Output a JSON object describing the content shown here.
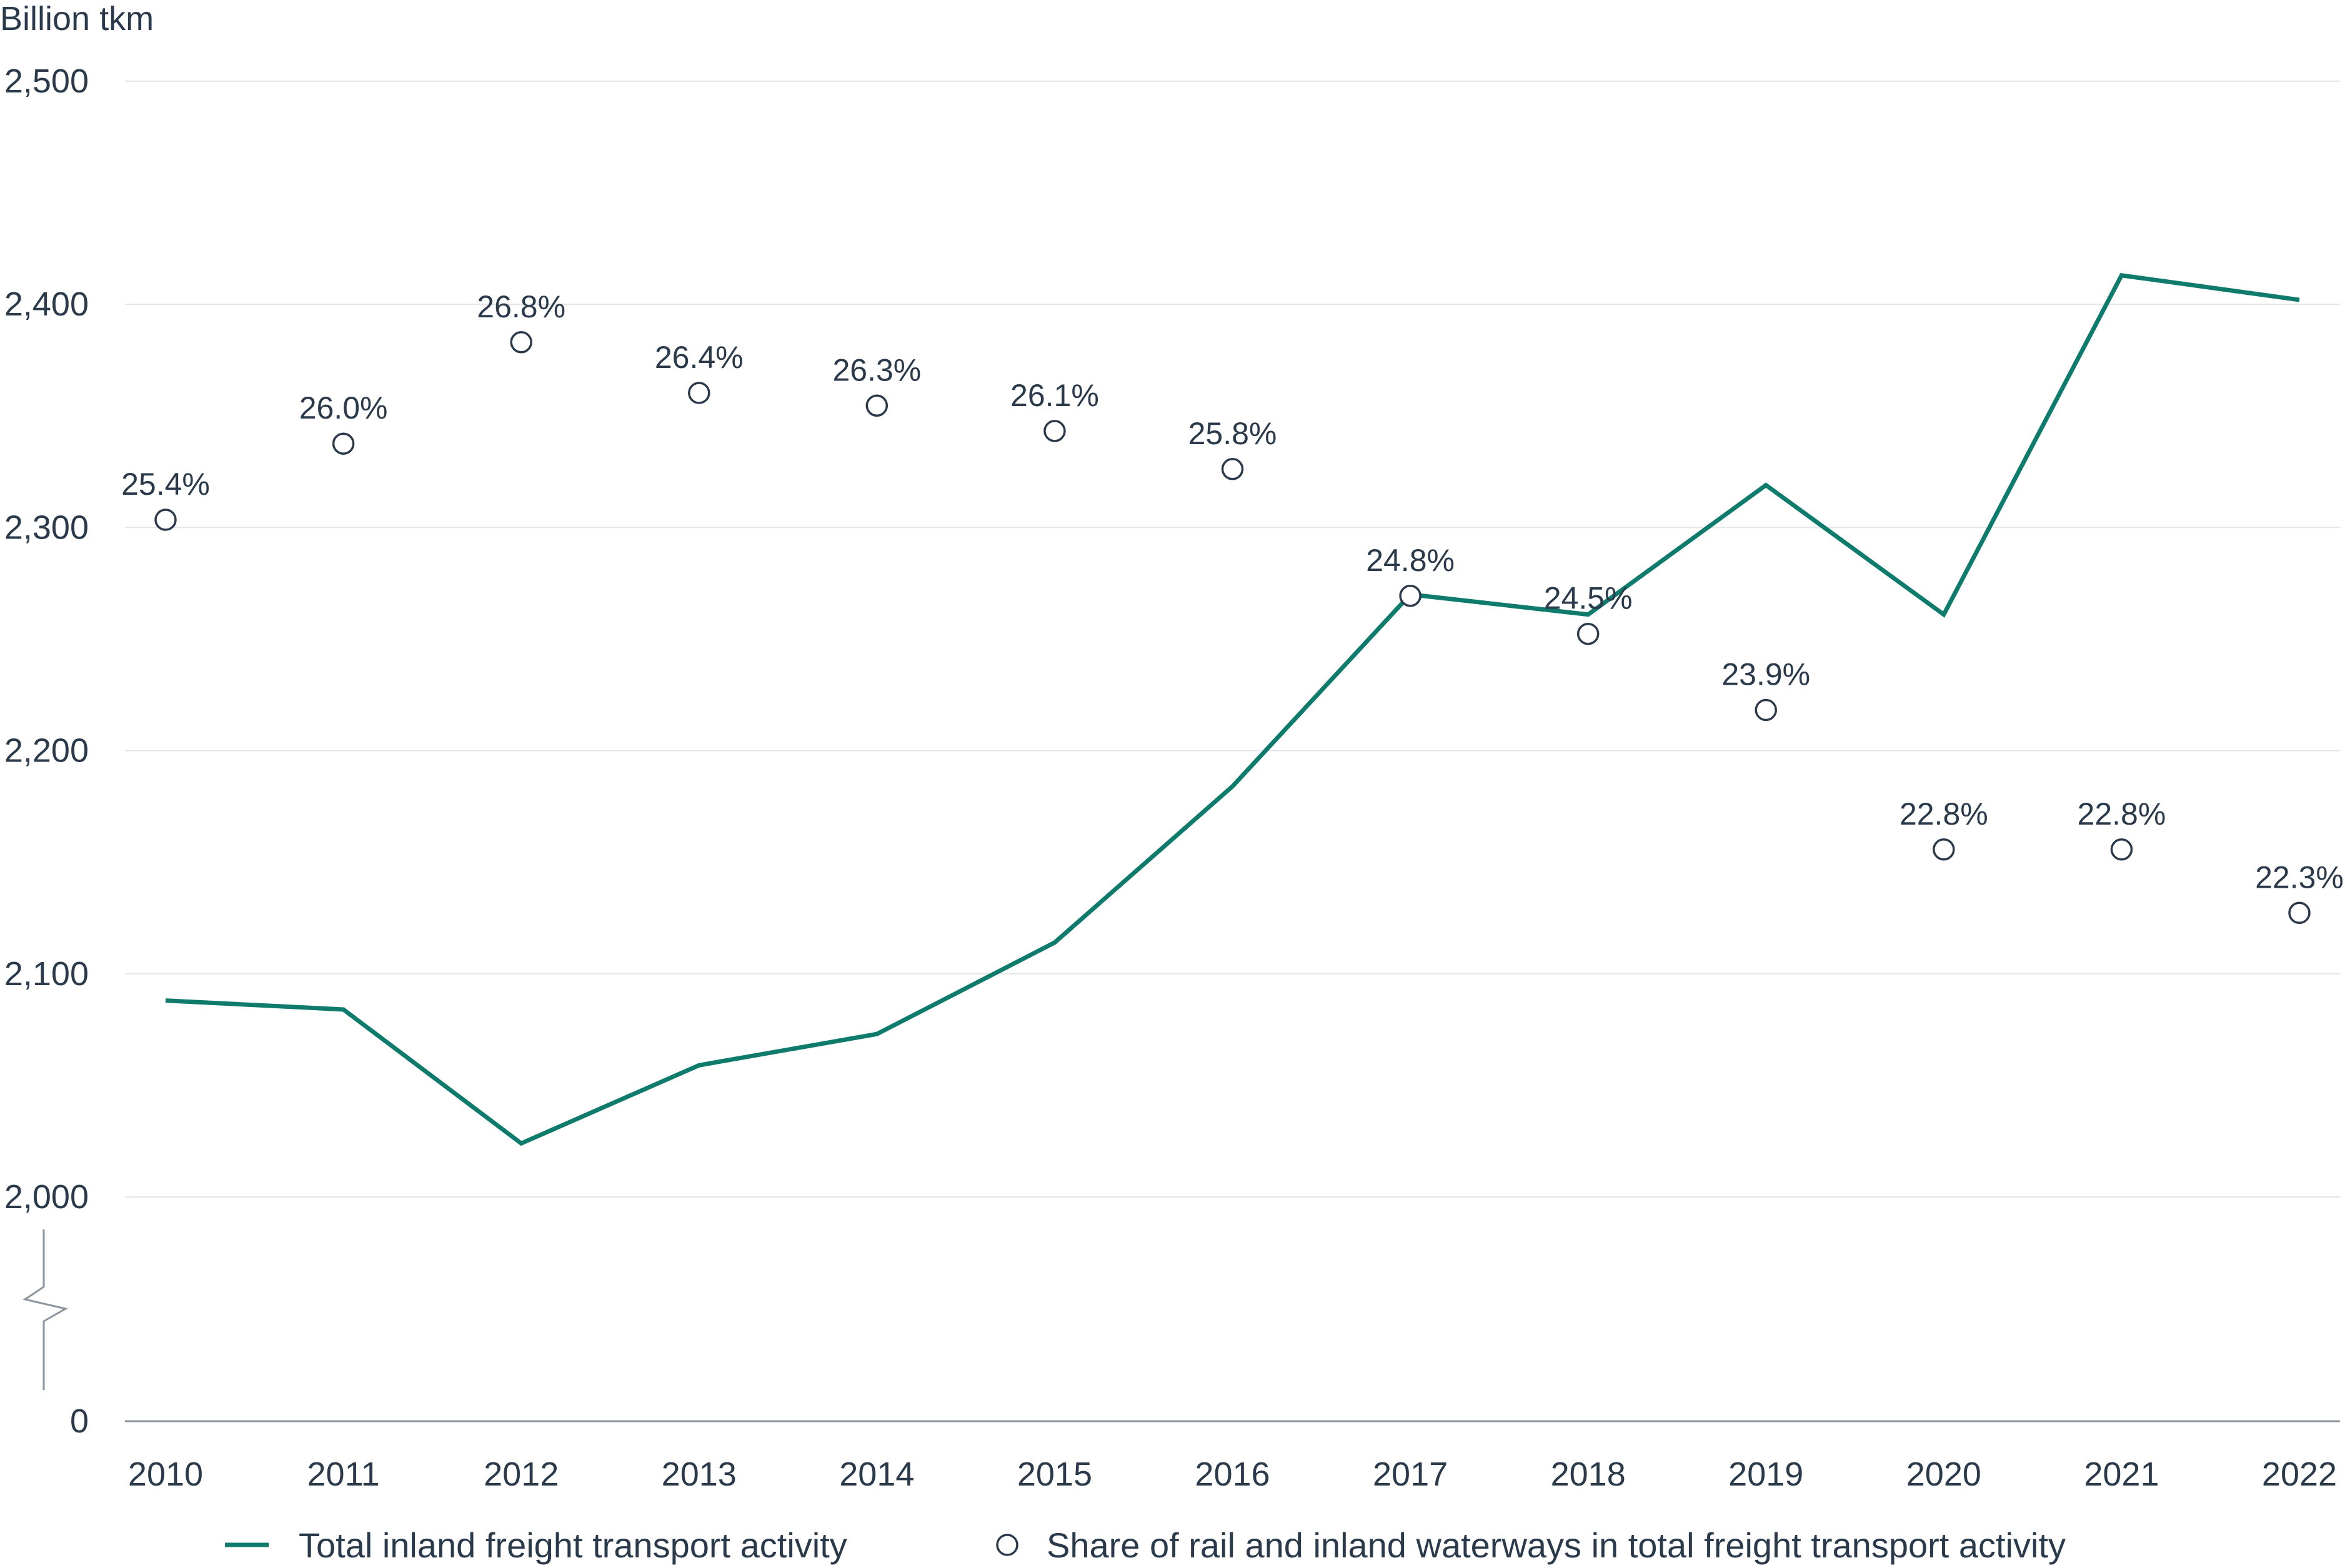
{
  "chart_data": {
    "type": "line",
    "ylabel": "Billion tkm",
    "x": [
      "2010",
      "2011",
      "2012",
      "2013",
      "2014",
      "2015",
      "2016",
      "2017",
      "2018",
      "2019",
      "2020",
      "2021",
      "2022"
    ],
    "y_ticks": [
      "0",
      "2,000",
      "2,100",
      "2,200",
      "2,300",
      "2,400",
      "2,500"
    ],
    "y_axis": {
      "break": true,
      "visible_range": [
        2000,
        2500
      ],
      "gridlines": true
    },
    "series": [
      {
        "name": "Total inland freight transport activity",
        "kind": "line",
        "color": "#0f7b6c",
        "values": [
          2088,
          2084,
          2024,
          2059,
          2073,
          2114,
          2184,
          2270,
          2261,
          2319,
          2261,
          2413,
          2402
        ]
      },
      {
        "name": "Share of rail and inland waterways in total freight transport activity",
        "kind": "marker",
        "marker": "hollow-circle",
        "color": "#2b3a4a",
        "labels": [
          "25.4%",
          "26.0%",
          "26.8%",
          "26.4%",
          "26.3%",
          "26.1%",
          "25.8%",
          "24.8%",
          "24.5%",
          "23.9%",
          "22.8%",
          "22.8%",
          "22.3%"
        ],
        "values_percent": [
          25.4,
          26.0,
          26.8,
          26.4,
          26.3,
          26.1,
          25.8,
          24.8,
          24.5,
          23.9,
          22.8,
          22.8,
          22.3
        ]
      }
    ],
    "legend_placement": "bottom"
  }
}
